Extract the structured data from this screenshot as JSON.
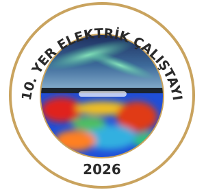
{
  "logo": {
    "title": "10. YER ELEKTRİK ÇALIŞTAYI",
    "year": "2026"
  }
}
